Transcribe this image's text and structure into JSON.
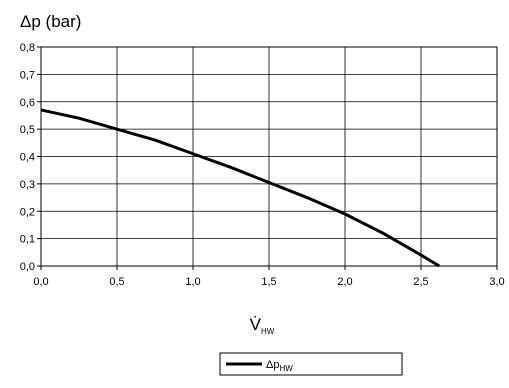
{
  "chart_data": {
    "type": "line",
    "ylabel": "Δp (bar)",
    "xlabel": {
      "base": "V̇",
      "sub": "HW"
    },
    "xlim": [
      0,
      3.0
    ],
    "ylim": [
      0,
      0.8
    ],
    "x_ticks": [
      {
        "value": 0.0,
        "label": "0,0"
      },
      {
        "value": 0.5,
        "label": "0,5"
      },
      {
        "value": 1.0,
        "label": "1,0"
      },
      {
        "value": 1.5,
        "label": "1,5"
      },
      {
        "value": 2.0,
        "label": "2,0"
      },
      {
        "value": 2.5,
        "label": "2,5"
      },
      {
        "value": 3.0,
        "label": "3,0"
      }
    ],
    "y_ticks": [
      {
        "value": 0.0,
        "label": "0,0"
      },
      {
        "value": 0.1,
        "label": "0,1"
      },
      {
        "value": 0.2,
        "label": "0,2"
      },
      {
        "value": 0.3,
        "label": "0,3"
      },
      {
        "value": 0.4,
        "label": "0,4"
      },
      {
        "value": 0.5,
        "label": "0,5"
      },
      {
        "value": 0.6,
        "label": "0,6"
      },
      {
        "value": 0.7,
        "label": "0,7"
      },
      {
        "value": 0.8,
        "label": "0,8"
      }
    ],
    "grid": true,
    "legend_position": "bottom-center",
    "series": [
      {
        "name": "Δp",
        "name_sub": "HW",
        "color": "#000000",
        "x": [
          0.0,
          0.25,
          0.5,
          0.75,
          1.0,
          1.25,
          1.5,
          1.75,
          2.0,
          2.25,
          2.5,
          2.62
        ],
        "y": [
          0.57,
          0.54,
          0.5,
          0.46,
          0.41,
          0.36,
          0.305,
          0.25,
          0.19,
          0.12,
          0.04,
          0.0
        ]
      }
    ]
  }
}
